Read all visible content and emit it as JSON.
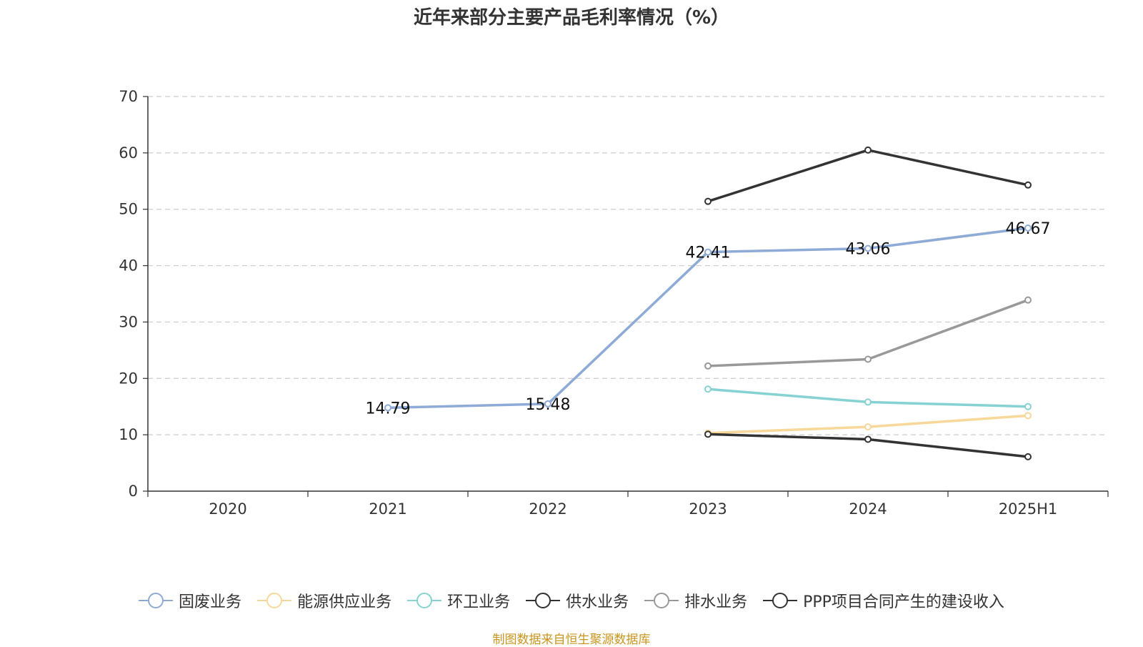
{
  "title": "近年来部分主要产品毛利率情况（%）",
  "source_note": "制图数据来自恒生聚源数据库",
  "chart_data": {
    "type": "line",
    "title": "近年来部分主要产品毛利率情况（%）",
    "categories": [
      "2020",
      "2021",
      "2022",
      "2023",
      "2024",
      "2025H1"
    ],
    "ylim": [
      0,
      70
    ],
    "yticks": [
      0,
      10,
      20,
      30,
      40,
      50,
      60,
      70
    ],
    "grid": true,
    "legend_position": "bottom",
    "series": [
      {
        "name": "固废业务",
        "color": "#8eaad6",
        "values": [
          null,
          14.79,
          15.48,
          42.41,
          43.06,
          46.67
        ],
        "show_labels": true
      },
      {
        "name": "能源供应业务",
        "color": "#f7d898",
        "values": [
          null,
          null,
          null,
          10.3,
          11.4,
          13.4
        ],
        "show_labels": false
      },
      {
        "name": "环卫业务",
        "color": "#86d2d2",
        "values": [
          null,
          null,
          null,
          18.1,
          15.8,
          15.0
        ],
        "show_labels": false
      },
      {
        "name": "供水业务",
        "color": "#333333",
        "values": [
          null,
          null,
          null,
          10.1,
          9.2,
          6.1
        ],
        "show_labels": false
      },
      {
        "name": "排水业务",
        "color": "#999999",
        "values": [
          null,
          null,
          null,
          22.2,
          23.4,
          33.9
        ],
        "show_labels": false
      },
      {
        "name": "PPP项目合同产生的建设收入",
        "color": "#333333",
        "values": [
          null,
          null,
          null,
          51.4,
          60.5,
          54.3
        ],
        "show_labels": false
      }
    ]
  }
}
